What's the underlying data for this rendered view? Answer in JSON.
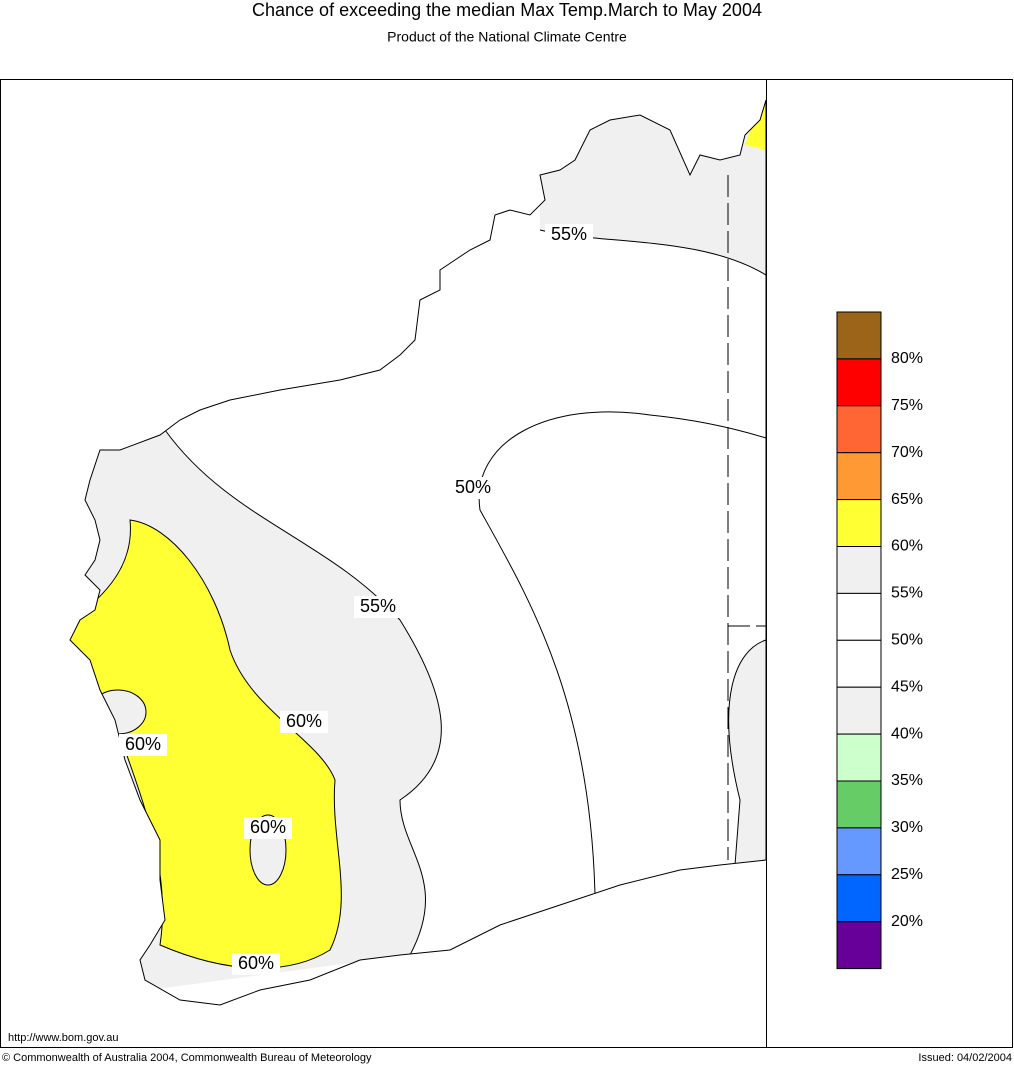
{
  "header": {
    "title": "Chance of exceeding the median Max Temp.March to May 2004",
    "subtitle": "Product of the National Climate Centre"
  },
  "map": {
    "contour_labels": [
      "55%",
      "50%",
      "55%",
      "60%",
      "60%",
      "60%",
      "60%"
    ]
  },
  "legend": {
    "colors": [
      "#9b6419",
      "#ff0000",
      "#ff6633",
      "#ff9933",
      "#ffff33",
      "#f0f0f0",
      "#ffffff",
      "#ffffff",
      "#f0f0f0",
      "#ccffcc",
      "#66cc66",
      "#6699ff",
      "#0066ff",
      "#660099"
    ],
    "labels": [
      "80%",
      "75%",
      "70%",
      "65%",
      "60%",
      "55%",
      "50%",
      "45%",
      "40%",
      "35%",
      "30%",
      "25%",
      "20%"
    ]
  },
  "footer": {
    "url": "http://www.bom.gov.au",
    "copyright": "© Commonwealth of Australia 2004, Commonwealth Bureau of Meteorology",
    "issued": "Issued: 04/02/2004"
  }
}
